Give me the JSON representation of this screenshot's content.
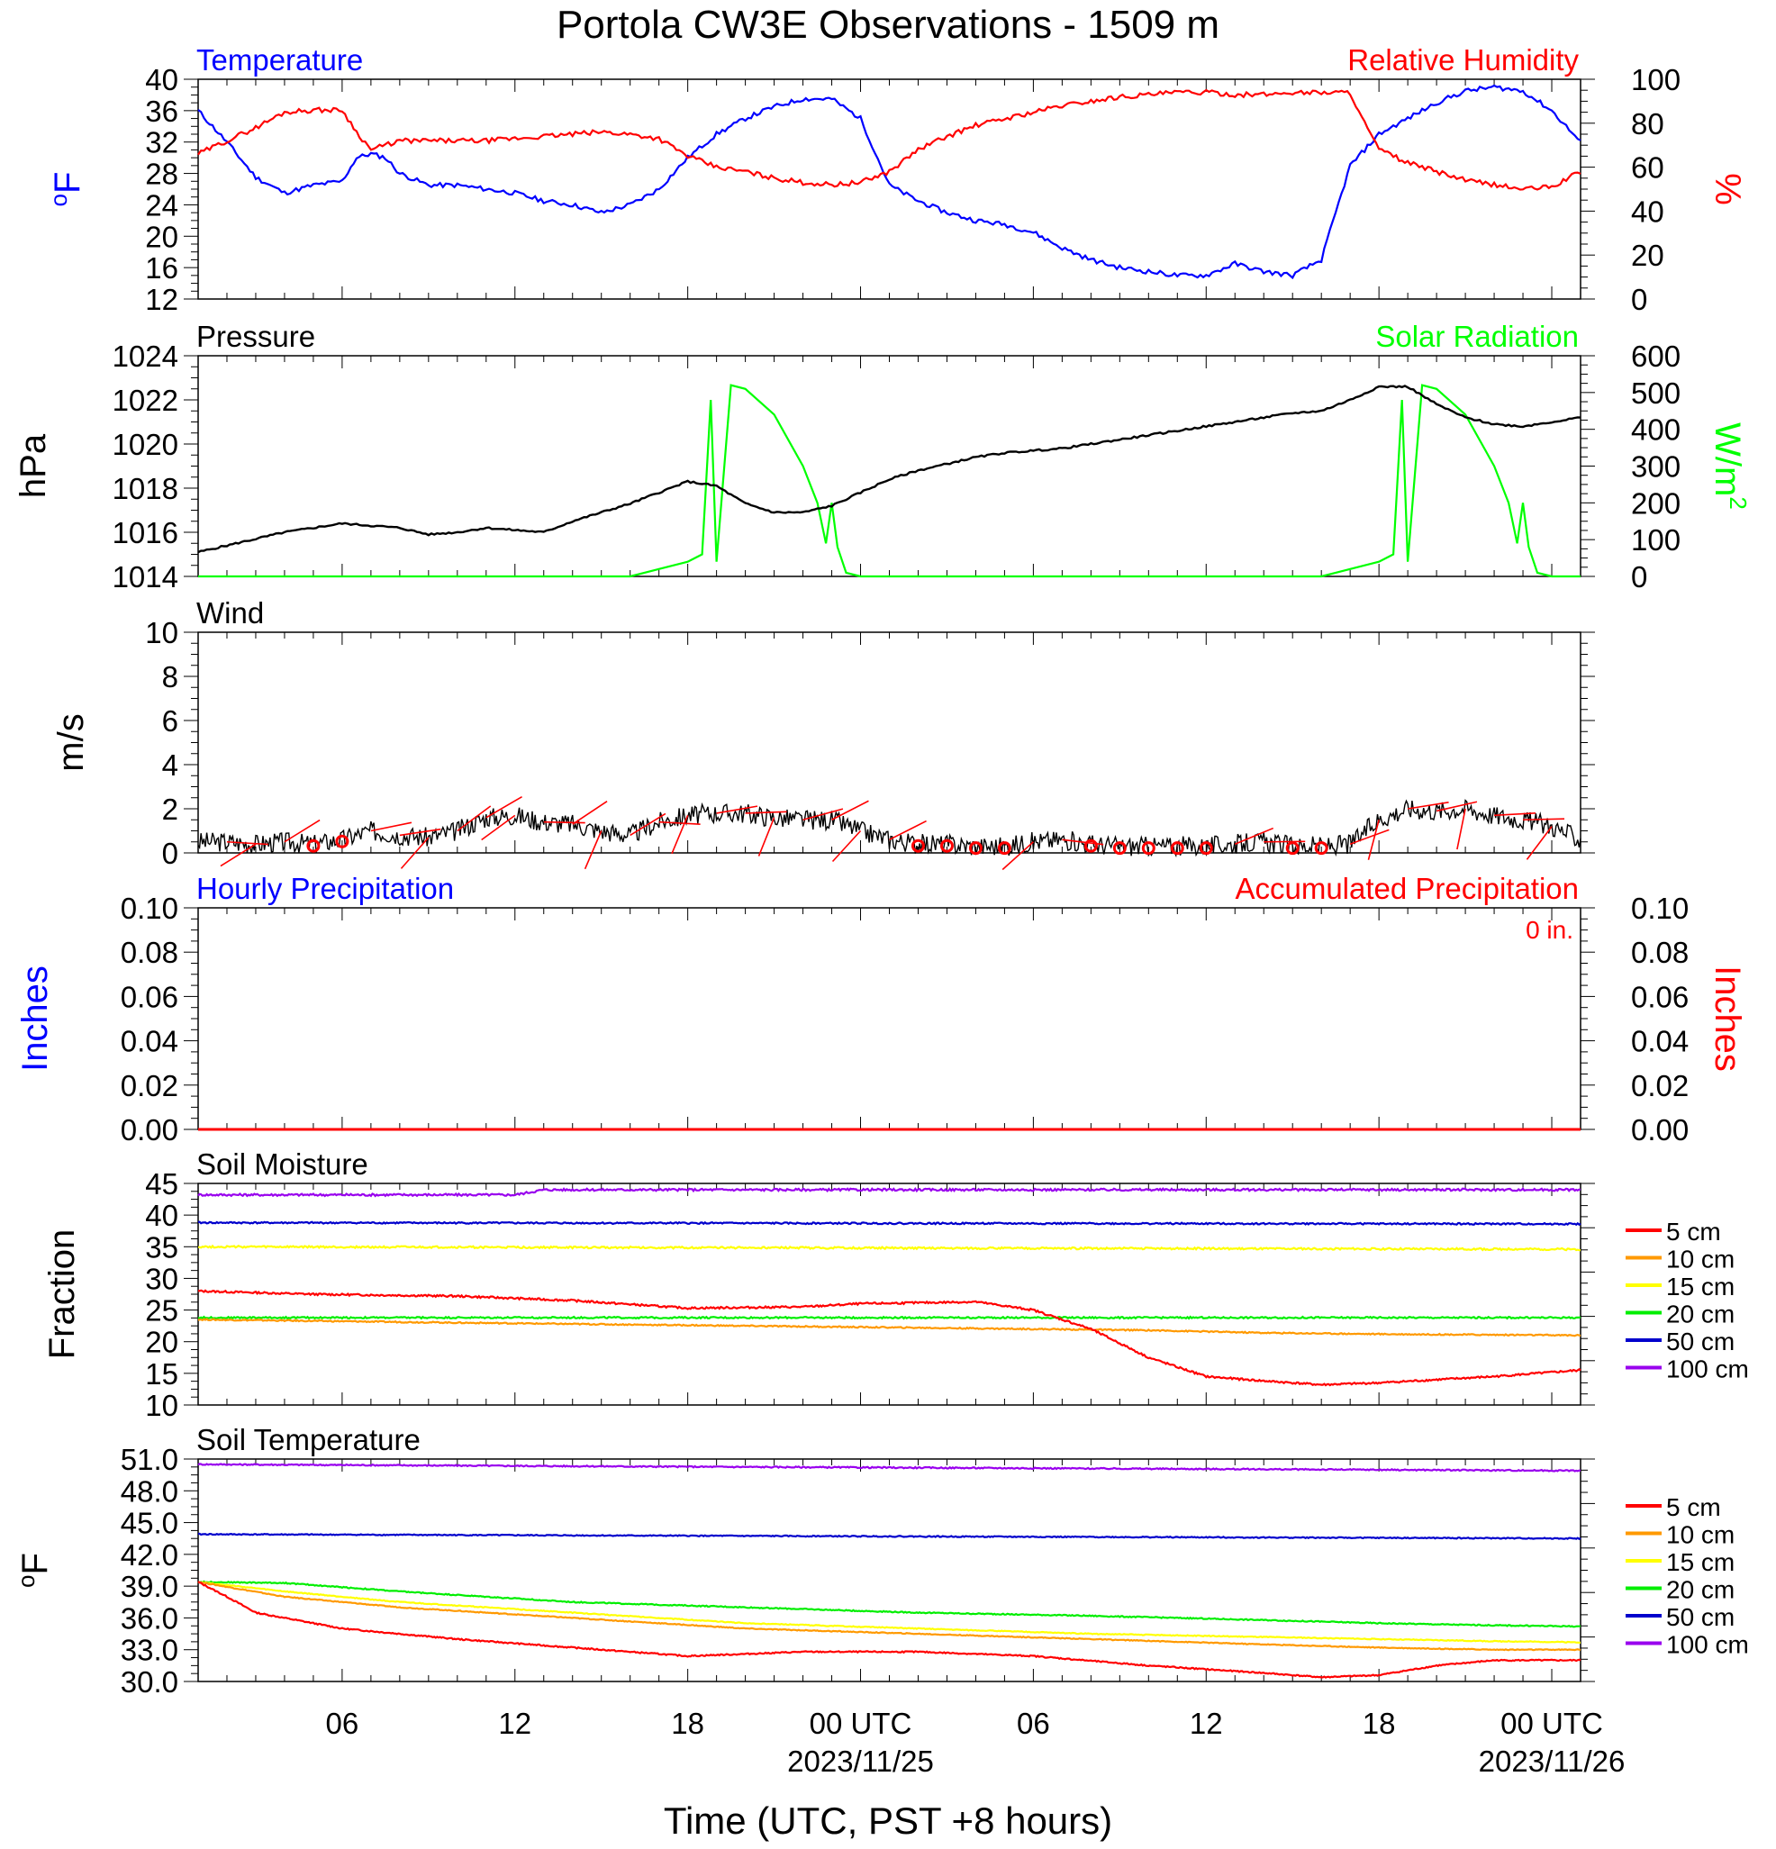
{
  "figure": {
    "title": "Portola CW3E Observations - 1509 m",
    "xlabel": "Time (UTC, PST +8 hours)",
    "x_ticks": [
      {
        "label": "06",
        "hour": 6,
        "date": ""
      },
      {
        "label": "12",
        "hour": 12,
        "date": ""
      },
      {
        "label": "18",
        "hour": 18,
        "date": ""
      },
      {
        "label": "00 UTC",
        "hour": 24,
        "date": "2023/11/25"
      },
      {
        "label": "06",
        "hour": 30,
        "date": ""
      },
      {
        "label": "12",
        "hour": 36,
        "date": ""
      },
      {
        "label": "18",
        "hour": 42,
        "date": ""
      },
      {
        "label": "00 UTC",
        "hour": 48,
        "date": "2023/11/26"
      }
    ],
    "x_range_hours": [
      1,
      49
    ]
  },
  "colors": {
    "temperature": "#0000ff",
    "humidity": "#ff0000",
    "pressure": "#000000",
    "solar": "#00ff00",
    "wind": "#000000",
    "barb": "#ff0000",
    "precip_hourly": "#0000ff",
    "precip_accum": "#ff0000",
    "soil_5": "#ff0000",
    "soil_10": "#ff9900",
    "soil_15": "#ffff00",
    "soil_20": "#00ee00",
    "soil_50": "#0000cc",
    "soil_100": "#9900ee"
  },
  "chart_data": [
    {
      "type": "line",
      "title": "Temperature / Relative Humidity",
      "left_title": "Temperature",
      "right_title": "Relative Humidity",
      "ylabel_left": "oF",
      "ylabel_right": "%",
      "ylim_left": [
        12,
        40
      ],
      "ylim_right": [
        0,
        100
      ],
      "yticks_left": [
        "12",
        "16",
        "20",
        "24",
        "28",
        "32",
        "36",
        "40"
      ],
      "yticks_right": [
        "0",
        "20",
        "40",
        "60",
        "80",
        "100"
      ],
      "series": [
        {
          "name": "Temperature",
          "axis": "left",
          "x": [
            1,
            2,
            3,
            4,
            5,
            6,
            6.5,
            7,
            7.5,
            8,
            9,
            10,
            11,
            12,
            13,
            14,
            15,
            16,
            17,
            18,
            19,
            20,
            21,
            22,
            23,
            24,
            25,
            26,
            27,
            28,
            29,
            30,
            31,
            32,
            33,
            34,
            35,
            36,
            37,
            38,
            39,
            40,
            41,
            42,
            43,
            44,
            45,
            46,
            47,
            48,
            49
          ],
          "y": [
            36,
            32,
            27.5,
            25.5,
            26.5,
            27,
            30,
            30.5,
            30,
            28,
            26.5,
            26.5,
            26,
            25.5,
            24.5,
            24,
            23,
            24,
            26,
            30,
            33,
            35,
            36.5,
            37.5,
            37.5,
            35,
            26.5,
            24.5,
            23,
            22,
            21.5,
            20.5,
            18.5,
            17,
            16,
            15.5,
            15,
            15,
            16.5,
            15.5,
            15,
            17,
            29,
            33,
            35,
            37,
            38.5,
            39,
            38.5,
            36,
            32
          ]
        },
        {
          "name": "Relative Humidity",
          "axis": "right",
          "x": [
            1,
            2,
            3,
            4,
            5,
            6,
            6.5,
            7,
            8,
            9,
            10,
            11,
            12,
            13,
            14,
            15,
            16,
            17,
            18,
            19,
            20,
            21,
            22,
            23,
            24,
            25,
            26,
            27,
            28,
            29,
            30,
            31,
            32,
            33,
            34,
            35,
            36,
            37,
            38,
            39,
            40,
            41,
            41.5,
            42,
            43,
            44,
            45,
            46,
            47,
            48,
            49
          ],
          "y": [
            66,
            72,
            78,
            85,
            86,
            86,
            76,
            68,
            72,
            72,
            72,
            72,
            73,
            74,
            75,
            76,
            75,
            73,
            65,
            60,
            58,
            55,
            53,
            52,
            53,
            58,
            68,
            74,
            79,
            82,
            85,
            88,
            90,
            92,
            93,
            94,
            94,
            93,
            93,
            94,
            94,
            94,
            80,
            68,
            62,
            58,
            54,
            52,
            50,
            51,
            58
          ]
        }
      ]
    },
    {
      "type": "line",
      "title": "Pressure / Solar Radiation",
      "left_title": "Pressure",
      "right_title": "Solar Radiation",
      "ylabel_left": "hPa",
      "ylabel_right": "W/m2",
      "ylim_left": [
        1014,
        1024
      ],
      "ylim_right": [
        0,
        600
      ],
      "yticks_left": [
        "1014",
        "1016",
        "1018",
        "1020",
        "1022",
        "1024"
      ],
      "yticks_right": [
        "0",
        "100",
        "200",
        "300",
        "400",
        "500",
        "600"
      ],
      "series": [
        {
          "name": "Pressure",
          "axis": "left",
          "x": [
            1,
            2,
            3,
            4,
            5,
            6,
            7,
            8,
            9,
            10,
            11,
            12,
            13,
            14,
            15,
            16,
            17,
            18,
            19,
            20,
            21,
            22,
            23,
            24,
            25,
            26,
            27,
            28,
            29,
            30,
            31,
            32,
            33,
            34,
            35,
            36,
            37,
            38,
            39,
            40,
            41,
            42,
            43,
            44,
            45,
            46,
            47,
            48,
            49
          ],
          "y": [
            1015.1,
            1015.4,
            1015.7,
            1016,
            1016.2,
            1016.4,
            1016.3,
            1016.2,
            1015.9,
            1016,
            1016.2,
            1016.1,
            1016,
            1016.5,
            1016.9,
            1017.3,
            1017.8,
            1018.3,
            1018.1,
            1017.3,
            1016.9,
            1016.9,
            1017.2,
            1017.8,
            1018.4,
            1018.8,
            1019.1,
            1019.4,
            1019.6,
            1019.7,
            1019.8,
            1020,
            1020.2,
            1020.4,
            1020.6,
            1020.8,
            1021,
            1021.2,
            1021.4,
            1021.5,
            1022,
            1022.6,
            1022.6,
            1021.8,
            1021.2,
            1020.9,
            1020.8,
            1021,
            1021.2
          ]
        },
        {
          "name": "Solar Radiation",
          "axis": "right",
          "x": [
            1,
            16,
            17,
            18,
            18.5,
            18.8,
            19,
            19.5,
            20,
            21,
            22,
            22.5,
            22.8,
            23,
            23.2,
            23.5,
            24,
            40,
            41,
            42,
            42.5,
            42.8,
            43,
            43.5,
            44,
            45,
            46,
            46.5,
            46.8,
            47,
            47.2,
            47.5,
            48,
            49
          ],
          "y": [
            0,
            0,
            20,
            40,
            60,
            480,
            40,
            520,
            510,
            440,
            300,
            200,
            90,
            200,
            80,
            10,
            0,
            0,
            20,
            40,
            60,
            480,
            40,
            520,
            510,
            440,
            300,
            200,
            90,
            200,
            80,
            10,
            0,
            0
          ]
        }
      ]
    },
    {
      "type": "line",
      "title": "Wind",
      "left_title": "Wind",
      "ylabel_left": "m/s",
      "ylim_left": [
        0,
        10
      ],
      "yticks_left": [
        "0",
        "2",
        "4",
        "6",
        "8",
        "10"
      ],
      "series": [
        {
          "name": "Wind",
          "axis": "left",
          "x": [
            1,
            2,
            3,
            4,
            5,
            6,
            7,
            8,
            9,
            10,
            11,
            12,
            13,
            14,
            15,
            16,
            17,
            18,
            19,
            20,
            21,
            22,
            23,
            24,
            25,
            26,
            27,
            28,
            29,
            30,
            31,
            32,
            33,
            34,
            35,
            36,
            37,
            38,
            39,
            40,
            41,
            42,
            43,
            44,
            45,
            46,
            47,
            48,
            49
          ],
          "y": [
            0.5,
            0.5,
            0.4,
            0.5,
            0.4,
            0.6,
            1,
            0.8,
            0.7,
            1,
            1.6,
            1.7,
            1.4,
            1.3,
            1,
            0.8,
            1.4,
            1.7,
            1.8,
            1.8,
            1.6,
            1.5,
            1.5,
            1,
            0.6,
            0.4,
            0.4,
            0.3,
            0.3,
            0.5,
            0.6,
            0.4,
            0.3,
            0.3,
            0.3,
            0.3,
            0.4,
            0.5,
            0.3,
            0.3,
            0.4,
            1.5,
            2,
            1.9,
            2,
            1.7,
            1.5,
            1.2,
            0.6
          ]
        }
      ],
      "calm_hours": [
        5,
        6,
        26,
        27,
        28,
        29,
        32,
        33,
        34,
        35,
        36,
        39,
        40
      ]
    },
    {
      "type": "line",
      "title": "Precipitation",
      "left_title": "Hourly Precipitation",
      "right_title": "Accumulated Precipitation",
      "accum_total": "0 in.",
      "ylabel_left": "Inches",
      "ylabel_right": "Inches",
      "ylim_left": [
        0,
        0.1
      ],
      "ylim_right": [
        0,
        0.1
      ],
      "yticks_left": [
        "0.00",
        "0.02",
        "0.04",
        "0.06",
        "0.08",
        "0.10"
      ],
      "yticks_right": [
        "0.00",
        "0.02",
        "0.04",
        "0.06",
        "0.08",
        "0.10"
      ],
      "series": [
        {
          "name": "Hourly Precipitation",
          "axis": "left",
          "x": [
            1,
            49
          ],
          "y": [
            0,
            0
          ]
        },
        {
          "name": "Accumulated Precipitation",
          "axis": "right",
          "x": [
            1,
            49
          ],
          "y": [
            0,
            0
          ]
        }
      ]
    },
    {
      "type": "line",
      "title": "Soil Moisture",
      "left_title": "Soil Moisture",
      "ylabel_left": "Fraction",
      "ylim_left": [
        10,
        45
      ],
      "yticks_left": [
        "10",
        "15",
        "20",
        "25",
        "30",
        "35",
        "40",
        "45"
      ],
      "series": [
        {
          "name": "5 cm",
          "x": [
            1,
            5,
            10,
            14,
            18,
            22,
            24,
            28,
            30,
            32,
            34,
            36,
            38,
            40,
            42,
            44,
            46,
            49
          ],
          "y": [
            28,
            27.5,
            27.2,
            26.5,
            25.3,
            25.5,
            26,
            26.3,
            25,
            22,
            17.5,
            14.5,
            13.8,
            13.2,
            13.5,
            14,
            14.5,
            15.5
          ]
        },
        {
          "name": "10 cm",
          "x": [
            1,
            10,
            20,
            30,
            34,
            38,
            42,
            49
          ],
          "y": [
            23.5,
            23,
            22.5,
            22,
            21.8,
            21.4,
            21.2,
            21
          ]
        },
        {
          "name": "15 cm",
          "x": [
            1,
            49
          ],
          "y": [
            35,
            34.6
          ]
        },
        {
          "name": "20 cm",
          "x": [
            1,
            49
          ],
          "y": [
            23.8,
            23.8
          ]
        },
        {
          "name": "50 cm",
          "x": [
            1,
            49
          ],
          "y": [
            38.8,
            38.6
          ]
        },
        {
          "name": "100 cm",
          "x": [
            1,
            12,
            13,
            49
          ],
          "y": [
            43.2,
            43.2,
            44,
            44
          ]
        }
      ],
      "legend": [
        "5 cm",
        "10 cm",
        "15 cm",
        "20 cm",
        "50 cm",
        "100 cm"
      ]
    },
    {
      "type": "line",
      "title": "Soil Temperature",
      "left_title": "Soil Temperature",
      "ylabel_left": "oF",
      "ylim_left": [
        30,
        51
      ],
      "yticks_left": [
        "30.0",
        "33.0",
        "36.0",
        "39.0",
        "42.0",
        "45.0",
        "48.0",
        "51.0"
      ],
      "series": [
        {
          "name": "5 cm",
          "x": [
            1,
            2,
            3,
            6,
            10,
            14,
            18,
            22,
            26,
            30,
            34,
            38,
            40,
            42,
            44,
            46,
            49
          ],
          "y": [
            39.4,
            38,
            36.5,
            35,
            34,
            33.2,
            32.4,
            32.8,
            32.8,
            32.4,
            31.5,
            30.8,
            30.4,
            30.6,
            31.5,
            32,
            32
          ]
        },
        {
          "name": "10 cm",
          "x": [
            1,
            4,
            8,
            14,
            20,
            26,
            32,
            38,
            42,
            46,
            49
          ],
          "y": [
            39.4,
            38,
            37,
            36,
            35,
            34.5,
            34,
            33.5,
            33.2,
            33,
            33
          ]
        },
        {
          "name": "15 cm",
          "x": [
            1,
            4,
            8,
            14,
            20,
            26,
            32,
            38,
            42,
            46,
            49
          ],
          "y": [
            39.4,
            38.5,
            37.5,
            36.5,
            35.5,
            35,
            34.5,
            34.2,
            34,
            33.8,
            33.7
          ]
        },
        {
          "name": "20 cm",
          "x": [
            1,
            4,
            8,
            14,
            20,
            26,
            32,
            38,
            42,
            46,
            49
          ],
          "y": [
            39.4,
            39.3,
            38.5,
            37.5,
            37,
            36.5,
            36.2,
            35.8,
            35.5,
            35.3,
            35.2
          ]
        },
        {
          "name": "50 cm",
          "x": [
            1,
            49
          ],
          "y": [
            43.9,
            43.5
          ]
        },
        {
          "name": "100 cm",
          "x": [
            1,
            16,
            49
          ],
          "y": [
            50.5,
            50.3,
            49.9
          ]
        }
      ],
      "legend": [
        "5 cm",
        "10 cm",
        "15 cm",
        "20 cm",
        "50 cm",
        "100 cm"
      ]
    }
  ]
}
